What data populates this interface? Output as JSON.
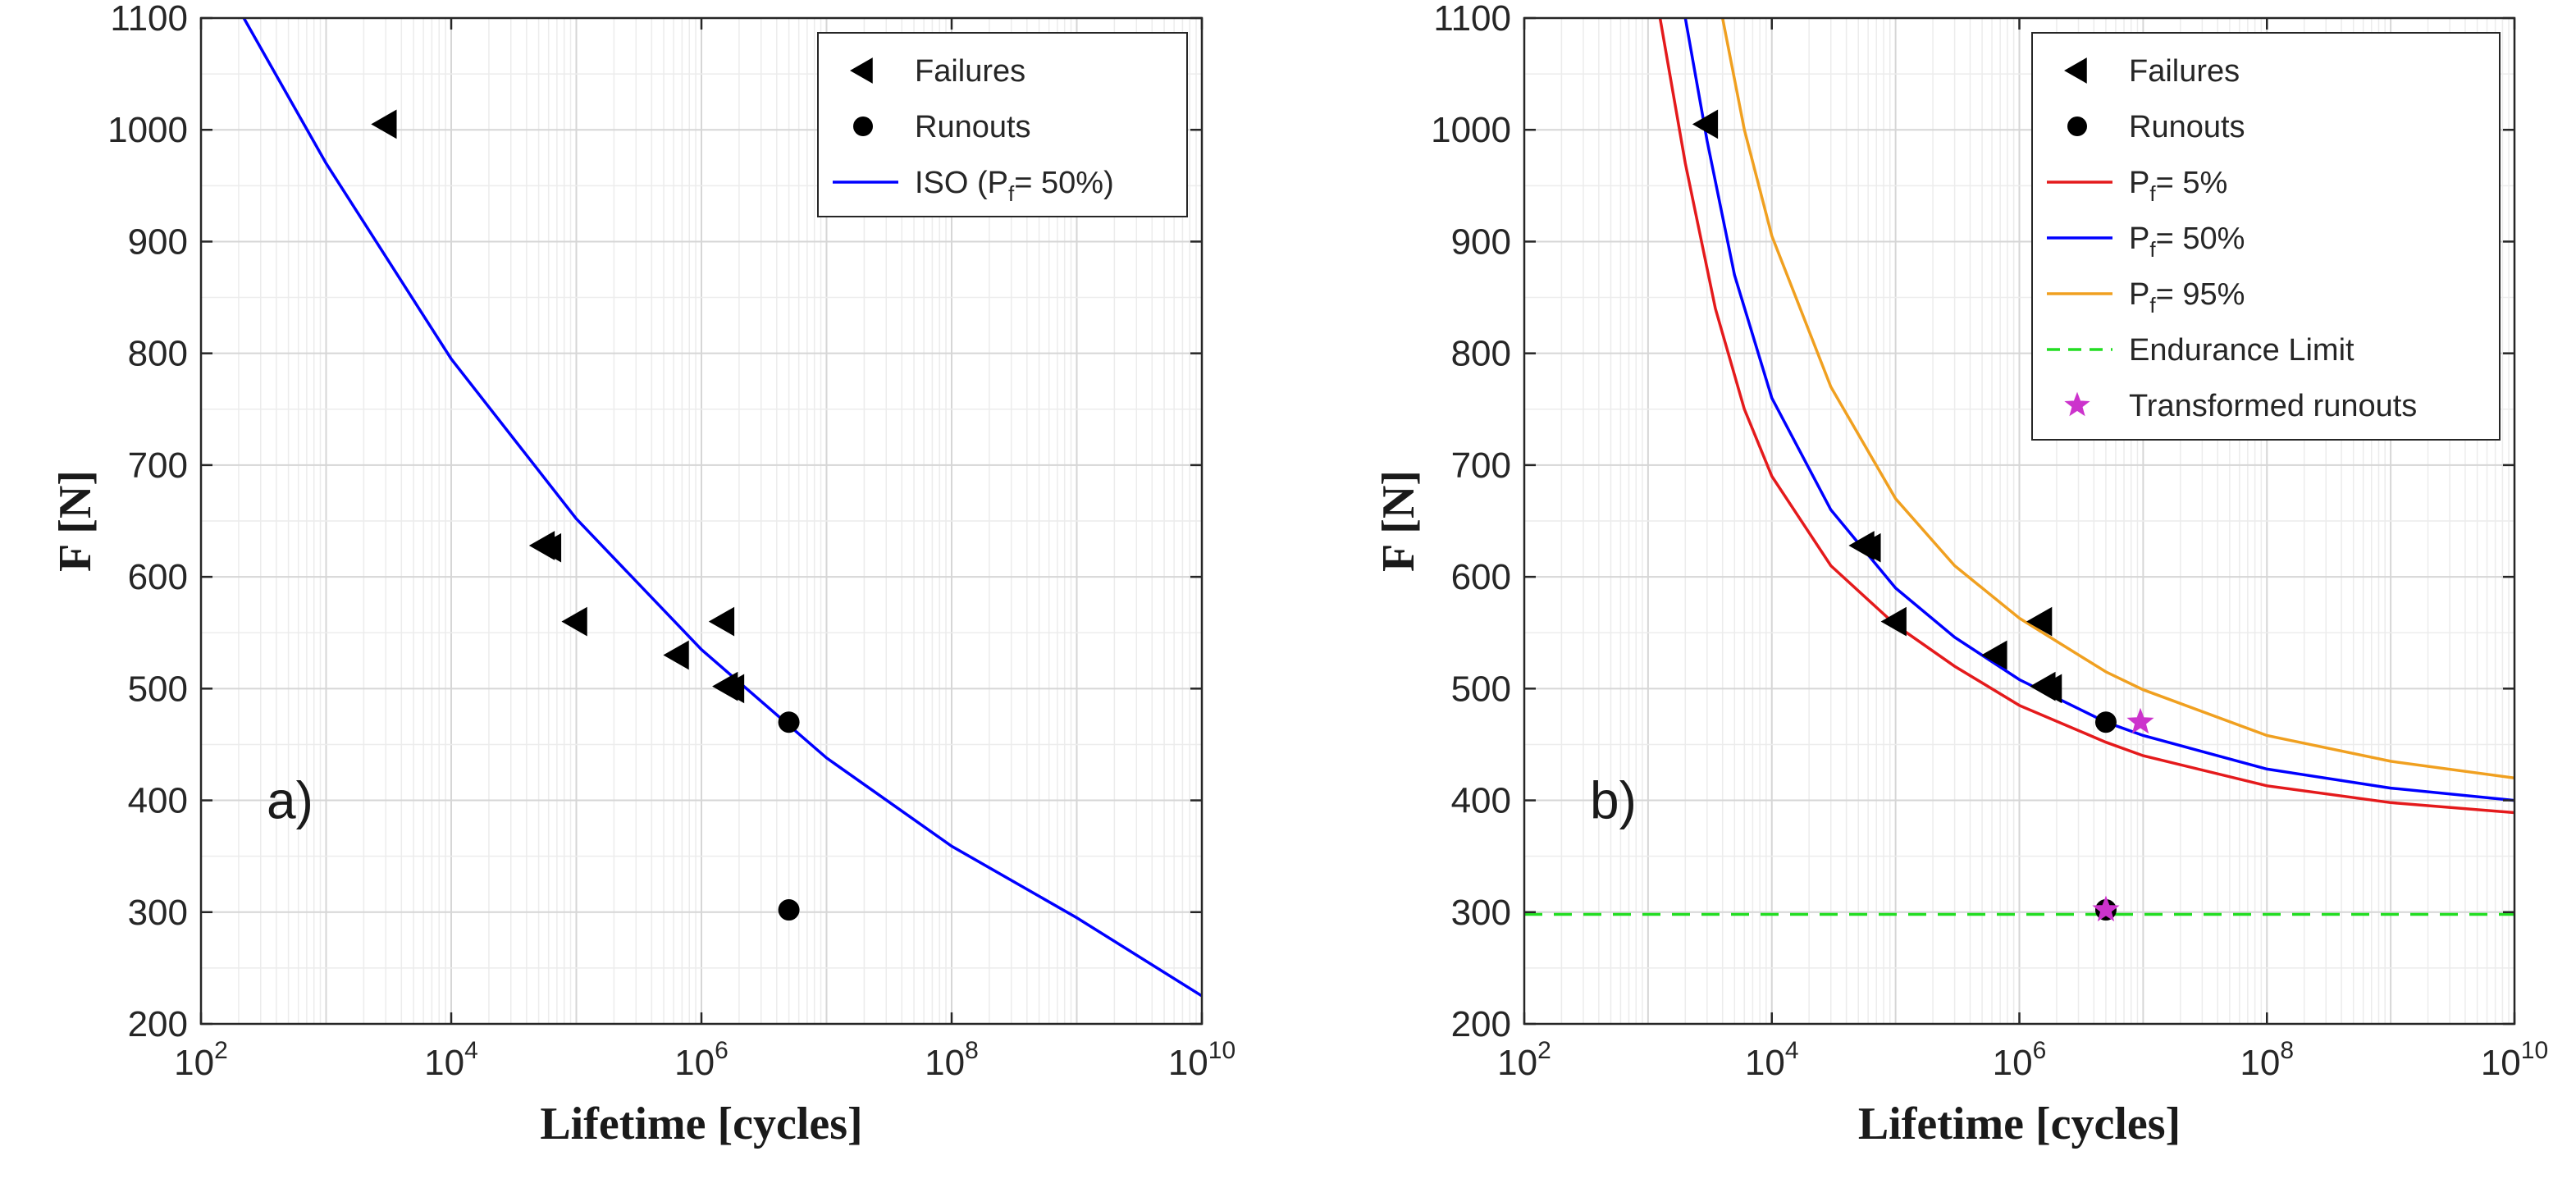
{
  "chart_data": [
    {
      "type": "scatter",
      "panel_label": "a)",
      "xlabel": "Lifetime [cycles]",
      "ylabel": "F [N]",
      "xscale": "log",
      "xlim": [
        100,
        10000000000
      ],
      "ylim": [
        200,
        1100
      ],
      "x_ticks": [
        {
          "base": "10",
          "exp": "2",
          "value": 100
        },
        {
          "base": "10",
          "exp": "4",
          "value": 10000
        },
        {
          "base": "10",
          "exp": "6",
          "value": 1000000
        },
        {
          "base": "10",
          "exp": "8",
          "value": 100000000
        },
        {
          "base": "10",
          "exp": "10",
          "value": 10000000000
        }
      ],
      "y_ticks": [
        200,
        300,
        400,
        500,
        600,
        700,
        800,
        900,
        1000,
        1100
      ],
      "grid": true,
      "legend_position": "top-right",
      "legend": [
        {
          "label": "Failures",
          "marker": "triangle-left",
          "color": "#000000"
        },
        {
          "label": "Runouts",
          "marker": "circle",
          "color": "#000000"
        },
        {
          "label": "ISO (P",
          "sub": "f",
          "suffix": "= 50%)",
          "marker": "line",
          "color": "#0000ff"
        }
      ],
      "failures": [
        {
          "x": 3000,
          "y": 1005
        },
        {
          "x": 55000,
          "y": 628
        },
        {
          "x": 62000,
          "y": 626
        },
        {
          "x": 100000,
          "y": 560
        },
        {
          "x": 650000,
          "y": 530
        },
        {
          "x": 1500000,
          "y": 560
        },
        {
          "x": 1600000,
          "y": 502
        },
        {
          "x": 1800000,
          "y": 500
        }
      ],
      "runouts": [
        {
          "x": 5000000,
          "y": 470
        },
        {
          "x": 5000000,
          "y": 302
        }
      ],
      "curves": [
        {
          "name": "ISO (Pf= 50%)",
          "color": "#0000ff",
          "dashed": false,
          "points": [
            [
              220,
              1100
            ],
            [
              1000,
              970
            ],
            [
              10000,
              795
            ],
            [
              100000,
              652
            ],
            [
              1000000,
              535
            ],
            [
              10000000,
              438
            ],
            [
              100000000,
              359
            ],
            [
              1000000000,
              295
            ],
            [
              10000000000,
              225
            ]
          ]
        }
      ]
    },
    {
      "type": "scatter",
      "panel_label": "b)",
      "xlabel": "Lifetime [cycles]",
      "ylabel": "F [N]",
      "xscale": "log",
      "xlim": [
        100,
        10000000000
      ],
      "ylim": [
        200,
        1100
      ],
      "x_ticks": [
        {
          "base": "10",
          "exp": "2",
          "value": 100
        },
        {
          "base": "10",
          "exp": "4",
          "value": 10000
        },
        {
          "base": "10",
          "exp": "6",
          "value": 1000000
        },
        {
          "base": "10",
          "exp": "8",
          "value": 100000000
        },
        {
          "base": "10",
          "exp": "10",
          "value": 10000000000
        }
      ],
      "y_ticks": [
        200,
        300,
        400,
        500,
        600,
        700,
        800,
        900,
        1000,
        1100
      ],
      "grid": true,
      "legend_position": "top-right",
      "legend": [
        {
          "label": "Failures",
          "marker": "triangle-left",
          "color": "#000000"
        },
        {
          "label": "Runouts",
          "marker": "circle",
          "color": "#000000"
        },
        {
          "label": "P",
          "sub": "f",
          "suffix": "= 5%",
          "marker": "line",
          "color": "#e41a1c"
        },
        {
          "label": "P",
          "sub": "f",
          "suffix": "= 50%",
          "marker": "line",
          "color": "#0000ff"
        },
        {
          "label": "P",
          "sub": "f",
          "suffix": "= 95%",
          "marker": "line",
          "color": "#f0a020"
        },
        {
          "label": "Endurance Limit",
          "marker": "dashed-line",
          "color": "#22dd22"
        },
        {
          "label": "Transformed runouts",
          "marker": "star",
          "color": "#cc33cc"
        }
      ],
      "failures": [
        {
          "x": 3000,
          "y": 1005
        },
        {
          "x": 55000,
          "y": 628
        },
        {
          "x": 62000,
          "y": 626
        },
        {
          "x": 100000,
          "y": 560
        },
        {
          "x": 650000,
          "y": 530
        },
        {
          "x": 1500000,
          "y": 560
        },
        {
          "x": 1600000,
          "y": 502
        },
        {
          "x": 1800000,
          "y": 500
        }
      ],
      "runouts": [
        {
          "x": 5000000,
          "y": 470
        },
        {
          "x": 5000000,
          "y": 302
        }
      ],
      "transformed_runouts": [
        {
          "x": 9500000,
          "y": 470
        },
        {
          "x": 5000000,
          "y": 302
        }
      ],
      "endurance_limit": 298,
      "curves": [
        {
          "name": "Pf= 5%",
          "color": "#e41a1c",
          "dashed": false,
          "points": [
            [
              1250,
              1100
            ],
            [
              2000,
              970
            ],
            [
              3500,
              840
            ],
            [
              6000,
              750
            ],
            [
              10000,
              690
            ],
            [
              30000,
              610
            ],
            [
              100000,
              557
            ],
            [
              300000,
              520
            ],
            [
              1000000,
              485
            ],
            [
              5000000,
              452
            ],
            [
              10000000,
              440
            ],
            [
              100000000,
              413
            ],
            [
              1000000000,
              398
            ],
            [
              10000000000,
              389
            ]
          ]
        },
        {
          "name": "Pf= 50%",
          "color": "#0000ff",
          "dashed": false,
          "points": [
            [
              2000,
              1100
            ],
            [
              3000,
              990
            ],
            [
              5000,
              870
            ],
            [
              10000,
              760
            ],
            [
              30000,
              660
            ],
            [
              100000,
              590
            ],
            [
              300000,
              546
            ],
            [
              1000000,
              508
            ],
            [
              5000000,
              470
            ],
            [
              10000000,
              458
            ],
            [
              100000000,
              428
            ],
            [
              1000000000,
              411
            ],
            [
              10000000000,
              400
            ]
          ]
        },
        {
          "name": "Pf= 95%",
          "color": "#f0a020",
          "dashed": false,
          "points": [
            [
              4000,
              1100
            ],
            [
              6000,
              1000
            ],
            [
              10000,
              905
            ],
            [
              30000,
              770
            ],
            [
              100000,
              670
            ],
            [
              300000,
              610
            ],
            [
              1000000,
              563
            ],
            [
              5000000,
              515
            ],
            [
              10000000,
              499
            ],
            [
              100000000,
              458
            ],
            [
              1000000000,
              435
            ],
            [
              10000000000,
              420
            ]
          ]
        },
        {
          "name": "Endurance Limit",
          "color": "#22dd22",
          "dashed": true,
          "points": [
            [
              100,
              298
            ],
            [
              10000000000,
              298
            ]
          ]
        }
      ]
    }
  ]
}
